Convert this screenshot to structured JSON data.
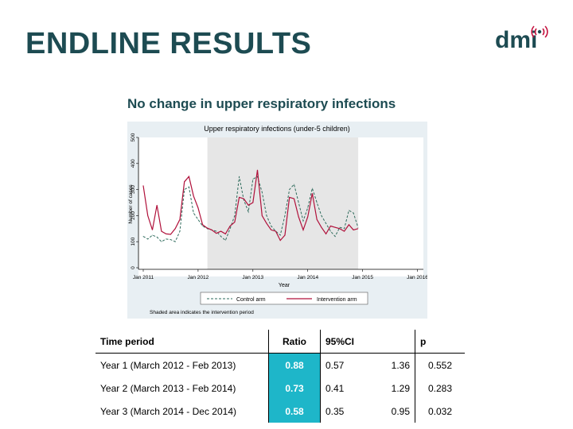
{
  "slide": {
    "title": "ENDLINE RESULTS",
    "logo": "dmi",
    "subtitle": "No change in upper respiratory infections"
  },
  "chart_data": {
    "type": "line",
    "title": "Upper respiratory infections (under-5 children)",
    "xlabel": "Year",
    "ylabel": "Number of cases",
    "xlim": [
      2011.0,
      2016.08
    ],
    "ylim": [
      0,
      500
    ],
    "x_ticks": [
      {
        "value": 2011.0,
        "label": "Jan 2011"
      },
      {
        "value": 2012.0,
        "label": "Jan 2012"
      },
      {
        "value": 2013.0,
        "label": "Jan 2013"
      },
      {
        "value": 2014.0,
        "label": "Jan 2014"
      },
      {
        "value": 2015.0,
        "label": "Jan 2015"
      },
      {
        "value": 2016.0,
        "label": "Jan 2016"
      }
    ],
    "y_ticks": [
      0,
      100,
      200,
      300,
      400,
      500
    ],
    "shaded_region": [
      2012.17,
      2014.92
    ],
    "note": "Shaded area indicates the intervention period",
    "series": [
      {
        "name": "Control arm",
        "color": "#2e6b5c",
        "dash": "dashed",
        "points": [
          [
            2011.0,
            120
          ],
          [
            2011.083,
            110
          ],
          [
            2011.167,
            125
          ],
          [
            2011.25,
            118
          ],
          [
            2011.333,
            100
          ],
          [
            2011.417,
            110
          ],
          [
            2011.5,
            108
          ],
          [
            2011.583,
            100
          ],
          [
            2011.667,
            140
          ],
          [
            2011.75,
            300
          ],
          [
            2011.833,
            310
          ],
          [
            2011.917,
            210
          ],
          [
            2012.0,
            185
          ],
          [
            2012.083,
            160
          ],
          [
            2012.167,
            150
          ],
          [
            2012.25,
            145
          ],
          [
            2012.333,
            140
          ],
          [
            2012.417,
            120
          ],
          [
            2012.5,
            105
          ],
          [
            2012.583,
            150
          ],
          [
            2012.667,
            200
          ],
          [
            2012.75,
            350
          ],
          [
            2012.833,
            260
          ],
          [
            2012.917,
            215
          ],
          [
            2013.0,
            340
          ],
          [
            2013.083,
            350
          ],
          [
            2013.167,
            290
          ],
          [
            2013.25,
            200
          ],
          [
            2013.333,
            160
          ],
          [
            2013.417,
            140
          ],
          [
            2013.5,
            125
          ],
          [
            2013.583,
            200
          ],
          [
            2013.667,
            300
          ],
          [
            2013.75,
            320
          ],
          [
            2013.833,
            250
          ],
          [
            2013.917,
            180
          ],
          [
            2014.0,
            230
          ],
          [
            2014.083,
            305
          ],
          [
            2014.167,
            250
          ],
          [
            2014.25,
            200
          ],
          [
            2014.333,
            170
          ],
          [
            2014.417,
            140
          ],
          [
            2014.5,
            120
          ],
          [
            2014.583,
            155
          ],
          [
            2014.667,
            150
          ],
          [
            2014.75,
            220
          ],
          [
            2014.833,
            210
          ],
          [
            2014.917,
            155
          ]
        ]
      },
      {
        "name": "Intervention arm",
        "color": "#b0103a",
        "dash": "solid",
        "points": [
          [
            2011.0,
            315
          ],
          [
            2011.083,
            200
          ],
          [
            2011.167,
            145
          ],
          [
            2011.25,
            240
          ],
          [
            2011.333,
            140
          ],
          [
            2011.417,
            130
          ],
          [
            2011.5,
            128
          ],
          [
            2011.583,
            150
          ],
          [
            2011.667,
            185
          ],
          [
            2011.75,
            330
          ],
          [
            2011.833,
            350
          ],
          [
            2011.917,
            275
          ],
          [
            2012.0,
            230
          ],
          [
            2012.083,
            165
          ],
          [
            2012.167,
            152
          ],
          [
            2012.25,
            145
          ],
          [
            2012.333,
            132
          ],
          [
            2012.417,
            140
          ],
          [
            2012.5,
            130
          ],
          [
            2012.583,
            160
          ],
          [
            2012.667,
            175
          ],
          [
            2012.75,
            270
          ],
          [
            2012.833,
            265
          ],
          [
            2012.917,
            240
          ],
          [
            2013.0,
            250
          ],
          [
            2013.083,
            375
          ],
          [
            2013.167,
            200
          ],
          [
            2013.25,
            170
          ],
          [
            2013.333,
            145
          ],
          [
            2013.417,
            140
          ],
          [
            2013.5,
            105
          ],
          [
            2013.583,
            125
          ],
          [
            2013.667,
            270
          ],
          [
            2013.75,
            265
          ],
          [
            2013.833,
            195
          ],
          [
            2013.917,
            145
          ],
          [
            2014.0,
            195
          ],
          [
            2014.083,
            285
          ],
          [
            2014.167,
            185
          ],
          [
            2014.25,
            155
          ],
          [
            2014.333,
            130
          ],
          [
            2014.417,
            160
          ],
          [
            2014.5,
            155
          ],
          [
            2014.583,
            150
          ],
          [
            2014.667,
            140
          ],
          [
            2014.75,
            165
          ],
          [
            2014.833,
            145
          ],
          [
            2014.917,
            150
          ]
        ]
      }
    ]
  },
  "table": {
    "headers": {
      "period": "Time period",
      "ratio": "Ratio",
      "ci": "95%CI",
      "p": "p"
    },
    "rows": [
      {
        "period": "Year 1 (March 2012 - Feb 2013)",
        "ratio": "0.88",
        "ci_low": "0.57",
        "ci_high": "1.36",
        "p": "0.552"
      },
      {
        "period": "Year 2 (March 2013 - Feb 2014)",
        "ratio": "0.73",
        "ci_low": "0.41",
        "ci_high": "1.29",
        "p": "0.283"
      },
      {
        "period": "Year 3 (March 2014 - Dec 2014)",
        "ratio": "0.58",
        "ci_low": "0.35",
        "ci_high": "0.95",
        "p": "0.032"
      }
    ]
  }
}
